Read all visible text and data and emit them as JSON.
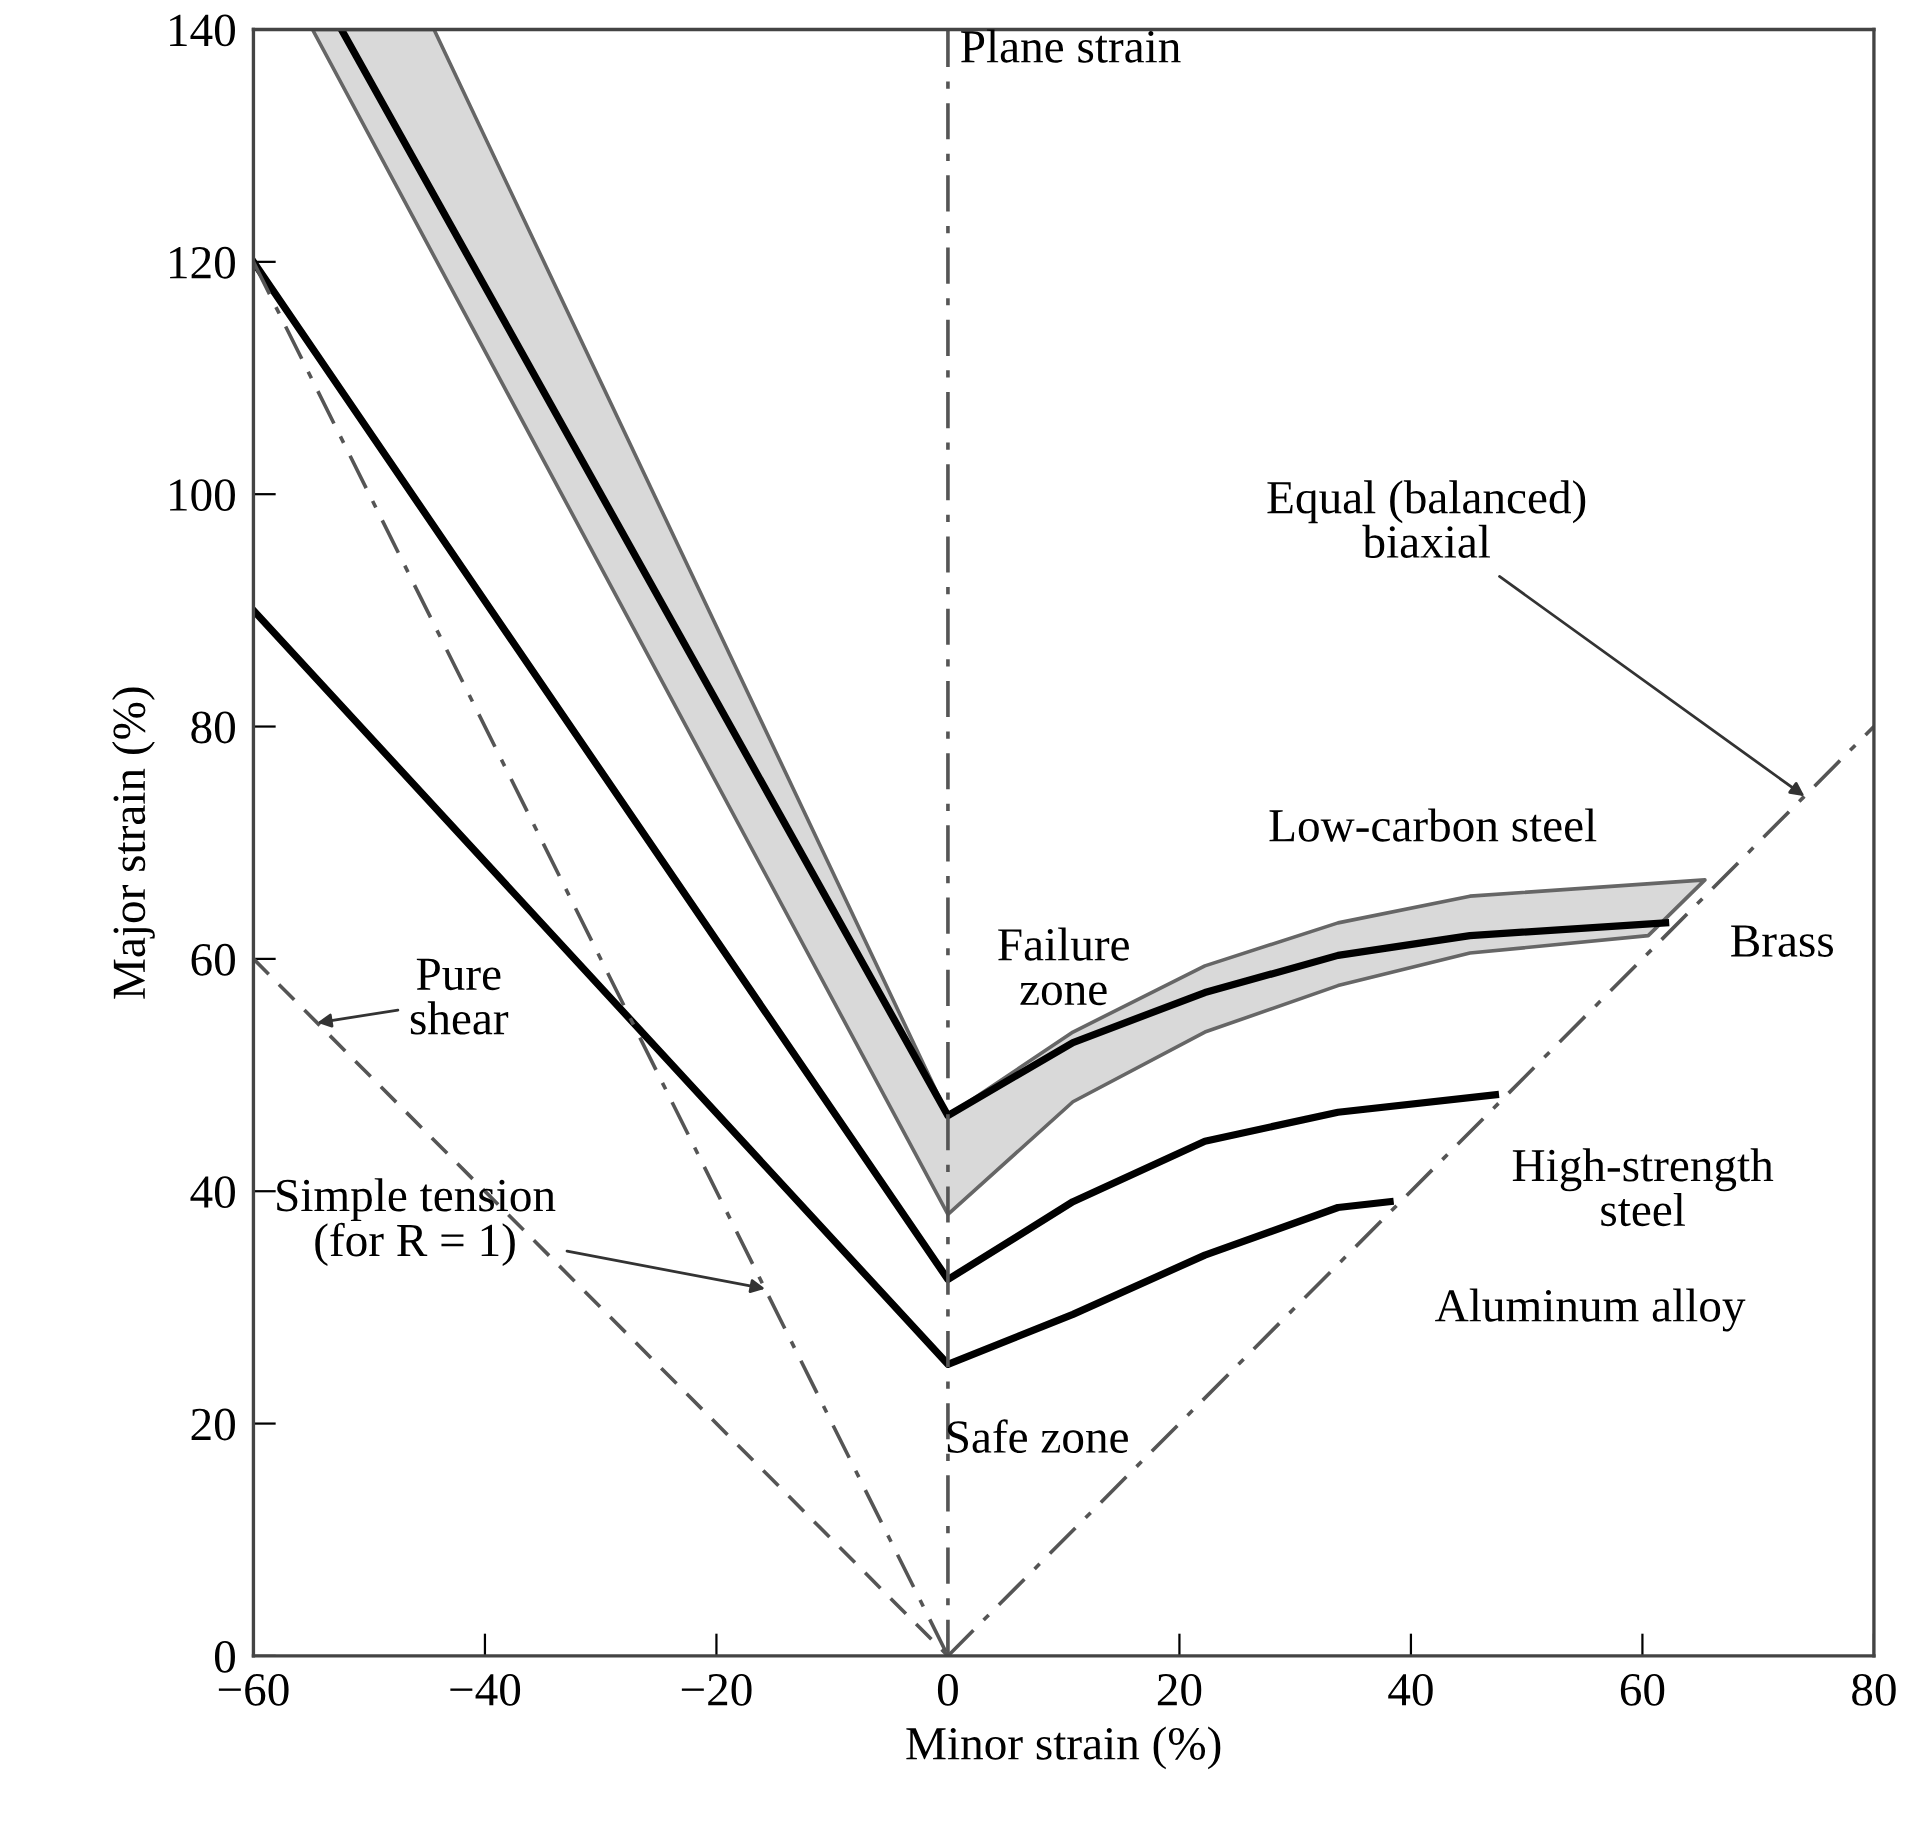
{
  "chart_data": {
    "type": "line",
    "xlabel": "Minor strain (%)",
    "ylabel": "Major strain (%)",
    "xlim": [
      -60,
      80
    ],
    "ylim": [
      0,
      140
    ],
    "xticks": [
      {
        "value": -60,
        "label": "−60"
      },
      {
        "value": -40,
        "label": "−40"
      },
      {
        "value": -20,
        "label": "−20"
      },
      0,
      20,
      40,
      60,
      80
    ],
    "yticks": [
      0,
      20,
      40,
      60,
      80,
      100,
      120,
      140
    ],
    "grid": false,
    "legend": false,
    "marker": "none",
    "series": [
      {
        "type": "area",
        "name": "Low-carbon steel",
        "color": "#d9d9d9",
        "x": [
          -44.4,
          0,
          10.8,
          22.2,
          33.7,
          45.1,
          65.4,
          60.5,
          45.1,
          33.7,
          22.2,
          10.8,
          0,
          -54.9
        ],
        "values": [
          140,
          46.5,
          53.7,
          59.4,
          63.1,
          65.4,
          66.8,
          62,
          60.5,
          57.7,
          53.7,
          47.7,
          38,
          140
        ]
      },
      {
        "name": "Brass",
        "color": "#000000",
        "line_style": "solid",
        "x": [
          -52.4,
          0,
          10.8,
          22.2,
          33.7,
          45.1,
          62
        ],
        "values": [
          140,
          46.5,
          52.8,
          57.1,
          60.3,
          62,
          63.1
        ]
      },
      {
        "name": "High-strength\nsteel",
        "color": "#000000",
        "line_style": "solid",
        "x": [
          -60,
          0,
          10.8,
          22.2,
          33.7,
          47.3
        ],
        "values": [
          120,
          32.4,
          39.1,
          44.3,
          46.8,
          48.3
        ]
      },
      {
        "name": "Aluminum alloy",
        "color": "#000000",
        "line_style": "solid",
        "x": [
          -60,
          0,
          10.8,
          22.2,
          33.7,
          38.2
        ],
        "values": [
          90,
          25.1,
          29.4,
          34.5,
          38.6,
          39.1
        ]
      },
      {
        "color": "#555555",
        "line_style": "dashdot",
        "x": [
          0,
          80
        ],
        "values": [
          0,
          80
        ]
      },
      {
        "color": "#555555",
        "line_style": "dashdot",
        "x": [
          -60,
          0
        ],
        "values": [
          120,
          0
        ]
      },
      {
        "color": "#555555",
        "line_style": "dashed",
        "x": [
          -60,
          0
        ],
        "values": [
          60,
          0
        ]
      }
    ],
    "ref_lines": [
      {
        "axis": "x",
        "value": 0,
        "label": "Plane strain",
        "color": "#555555",
        "line_style": "dashdot"
      }
    ],
    "annotations": [
      "Failure\nzone",
      "Safe zone",
      {
        "text": "Pure\nshear",
        "x": -54.5,
        "y": 54.5
      },
      {
        "text": "Simple tension\n(for R = 1)",
        "x": -15.8,
        "y": 31.6
      },
      {
        "text": "Equal (balanced)\nbiaxial",
        "x": 74,
        "y": 74
      }
    ]
  }
}
